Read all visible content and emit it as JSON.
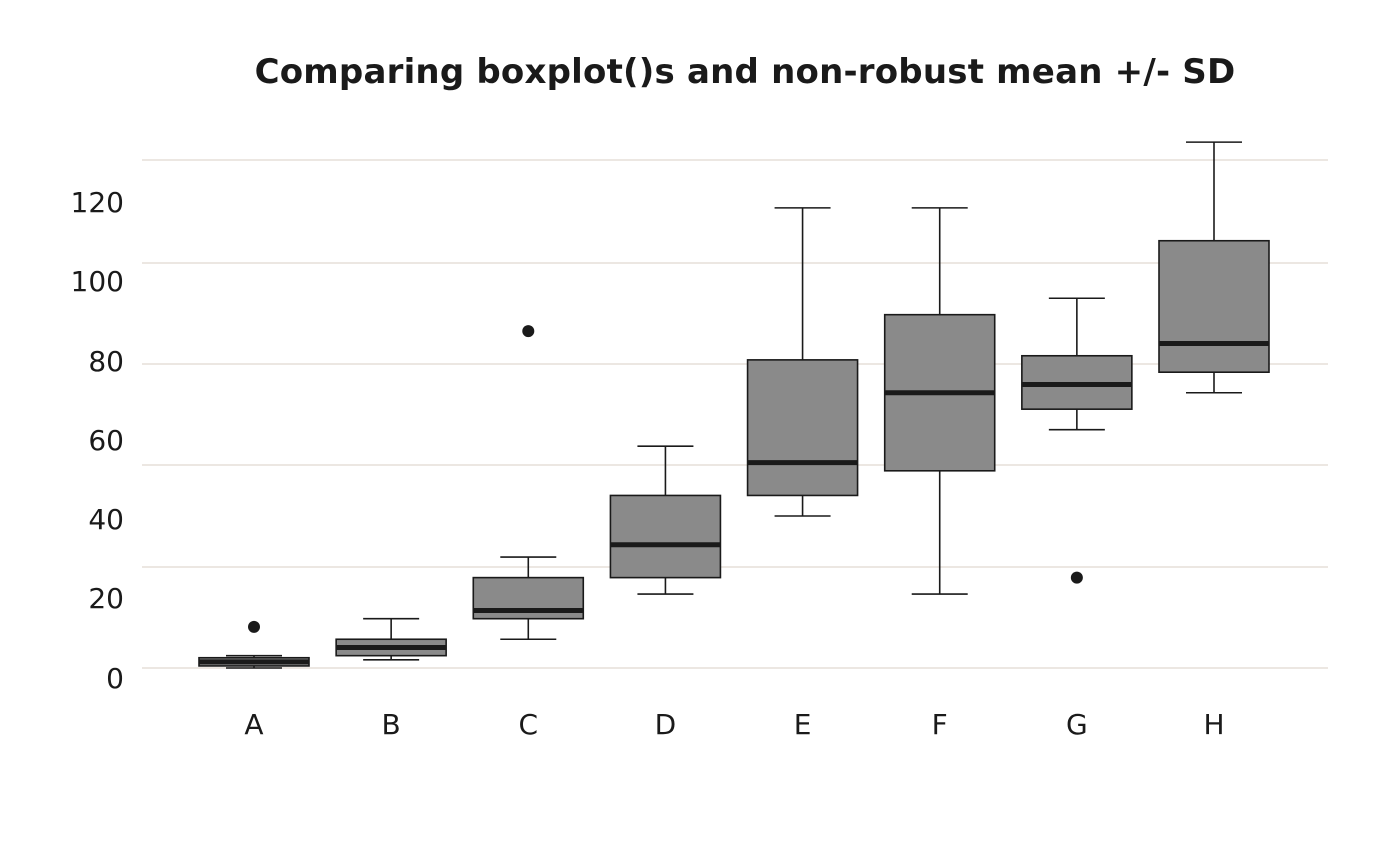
{
  "chart_data": {
    "type": "boxplot",
    "title": "Comparing boxplot()s and non-robust mean +/- SD",
    "xlabel": "",
    "ylabel": "",
    "ylim": [
      -2,
      128
    ],
    "yticks": [
      0,
      20,
      40,
      60,
      80,
      100,
      120
    ],
    "grid": true,
    "colors": {
      "box_fill": "#8a8a8a",
      "box_stroke": "#1a1a1a",
      "median": "#1a1a1a",
      "grid": "#ece7e2",
      "text": "#1a1a1a"
    },
    "categories": [
      "A",
      "B",
      "C",
      "D",
      "E",
      "F",
      "G",
      "H"
    ],
    "boxes": [
      {
        "category": "A",
        "min": 0,
        "q1": 0.5,
        "median": 1.5,
        "q3": 2.5,
        "max": 3,
        "outliers": [
          10
        ]
      },
      {
        "category": "B",
        "min": 2,
        "q1": 3,
        "median": 5,
        "q3": 7,
        "max": 12,
        "outliers": []
      },
      {
        "category": "C",
        "min": 7,
        "q1": 12,
        "median": 14,
        "q3": 22,
        "max": 27,
        "outliers": [
          82
        ]
      },
      {
        "category": "D",
        "min": 18,
        "q1": 22,
        "median": 30,
        "q3": 42,
        "max": 54,
        "outliers": []
      },
      {
        "category": "E",
        "min": 37,
        "q1": 42,
        "median": 50,
        "q3": 75,
        "max": 112,
        "outliers": []
      },
      {
        "category": "F",
        "min": 18,
        "q1": 48,
        "median": 67,
        "q3": 86,
        "max": 112,
        "outliers": []
      },
      {
        "category": "G",
        "min": 58,
        "q1": 63,
        "median": 69,
        "q3": 76,
        "max": 90,
        "outliers": [
          22
        ]
      },
      {
        "category": "H",
        "min": 67,
        "q1": 72,
        "median": 79,
        "q3": 104,
        "max": 128,
        "outliers": []
      }
    ]
  }
}
